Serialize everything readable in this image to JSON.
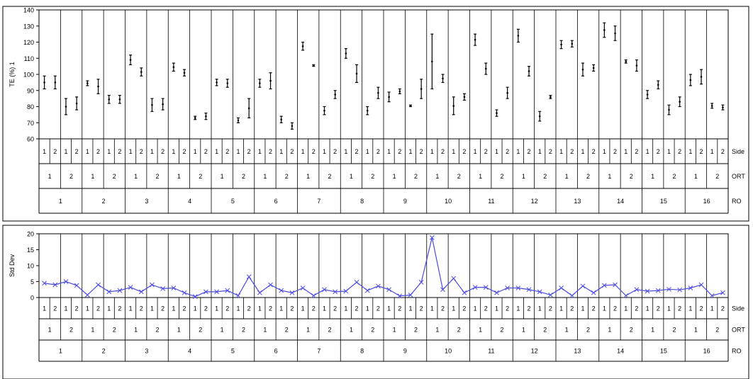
{
  "chart_data": [
    {
      "type": "range",
      "ylabel": "TE (%) 1",
      "ylim": [
        60,
        140
      ],
      "yticks": [
        60,
        70,
        80,
        90,
        100,
        110,
        120,
        130,
        140
      ],
      "grouping_labels": {
        "side": "Side",
        "ort": "ORT",
        "ro": "RO"
      },
      "ro_labels": [
        "1",
        "2",
        "3",
        "4",
        "5",
        "6",
        "7",
        "8",
        "9",
        "10",
        "11",
        "12",
        "13",
        "14",
        "15",
        "16"
      ],
      "ort_labels": [
        "1",
        "2"
      ],
      "side_labels": [
        "1",
        "2"
      ],
      "ranges": [
        [
          91,
          99
        ],
        [
          91,
          99
        ],
        [
          75,
          85
        ],
        [
          78,
          86
        ],
        [
          93,
          96
        ],
        [
          88,
          97
        ],
        [
          82,
          87
        ],
        [
          82,
          87
        ],
        [
          106,
          112
        ],
        [
          99,
          104
        ],
        [
          77,
          85
        ],
        [
          78,
          85
        ],
        [
          102,
          107
        ],
        [
          99,
          103
        ],
        [
          72,
          74
        ],
        [
          72,
          76
        ],
        [
          93,
          97
        ],
        [
          92,
          97
        ],
        [
          70,
          73
        ],
        [
          73,
          85
        ],
        [
          92,
          97
        ],
        [
          91,
          101
        ],
        [
          70,
          74
        ],
        [
          66,
          70
        ],
        [
          115,
          120
        ],
        [
          105,
          106
        ],
        [
          75,
          80
        ],
        [
          85,
          90
        ],
        [
          110,
          116
        ],
        [
          95,
          106
        ],
        [
          75,
          80
        ],
        [
          85,
          92
        ],
        [
          83,
          89
        ],
        [
          88,
          91
        ],
        [
          80,
          81
        ],
        [
          85,
          97
        ],
        [
          91,
          125
        ],
        [
          95,
          100
        ],
        [
          75,
          86
        ],
        [
          84,
          88
        ],
        [
          118,
          125
        ],
        [
          100,
          107
        ],
        [
          74,
          78
        ],
        [
          85,
          92
        ],
        [
          120,
          128
        ],
        [
          99,
          105
        ],
        [
          71,
          77
        ],
        [
          85,
          87
        ],
        [
          116,
          121
        ],
        [
          117,
          121
        ],
        [
          99,
          107
        ],
        [
          102,
          106
        ],
        [
          123,
          132
        ],
        [
          121,
          130
        ],
        [
          107,
          109
        ],
        [
          102,
          109
        ],
        [
          85,
          90
        ],
        [
          91,
          96
        ],
        [
          75,
          81
        ],
        [
          80,
          86
        ],
        [
          93,
          100
        ],
        [
          94,
          103
        ],
        [
          79,
          82
        ],
        [
          78,
          81
        ]
      ]
    },
    {
      "type": "line",
      "ylabel": "Std Dev",
      "ylim": [
        0,
        20
      ],
      "yticks": [
        0,
        5,
        10,
        15,
        20
      ],
      "grouping_labels": {
        "side": "Side",
        "ort": "ORT",
        "ro": "RO"
      },
      "ro_labels": [
        "1",
        "2",
        "3",
        "4",
        "5",
        "6",
        "7",
        "8",
        "9",
        "10",
        "11",
        "12",
        "13",
        "14",
        "15",
        "16"
      ],
      "ort_labels": [
        "1",
        "2"
      ],
      "side_labels": [
        "1",
        "2"
      ],
      "values": [
        4.5,
        4.0,
        5.0,
        3.8,
        0.8,
        4.0,
        1.8,
        2.2,
        3.2,
        1.8,
        4.0,
        2.8,
        3.0,
        1.5,
        0.3,
        1.8,
        1.8,
        2.2,
        0.6,
        6.5,
        1.5,
        4.0,
        2.2,
        1.5,
        3.0,
        0.6,
        2.5,
        1.8,
        2.0,
        4.8,
        2.2,
        3.6,
        2.5,
        0.5,
        0.8,
        4.8,
        18.8,
        2.5,
        6.0,
        1.5,
        3.2,
        3.2,
        1.5,
        3.0,
        3.0,
        2.5,
        1.8,
        0.8,
        3.0,
        0.6,
        3.6,
        1.5,
        3.8,
        4.0,
        0.6,
        2.5,
        2.0,
        2.2,
        2.6,
        2.4,
        3.0,
        4.0,
        0.6,
        1.5
      ],
      "color": "#4a4ae6"
    }
  ]
}
